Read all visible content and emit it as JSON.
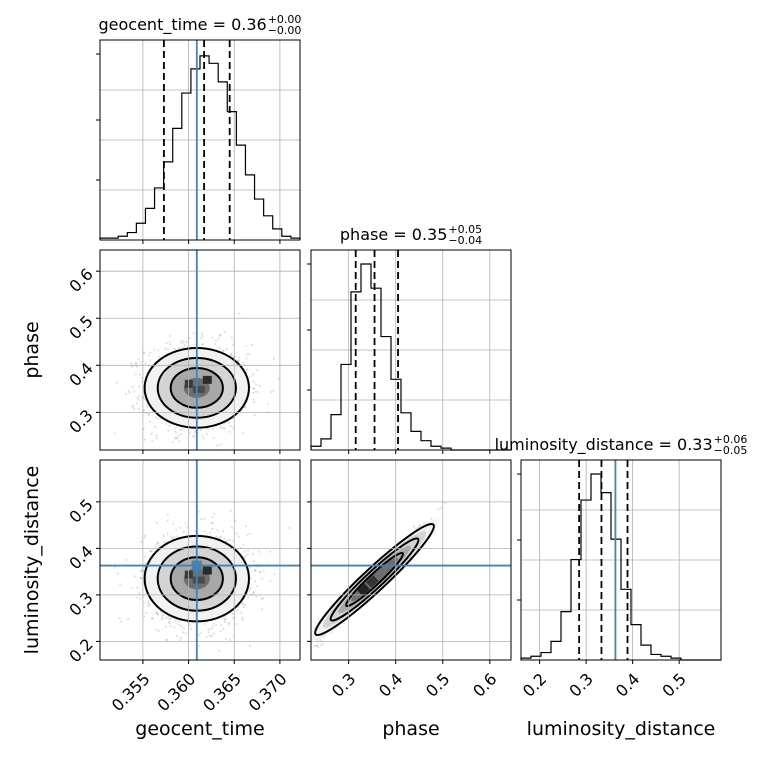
{
  "chart_data": {
    "type": "corner",
    "parameters": [
      "geocent_time",
      "phase",
      "luminosity_distance"
    ],
    "truth_color": "#4682b4",
    "titles": [
      {
        "param": "geocent_time",
        "text": "geocent_time = 0.36",
        "sup": "+0.00",
        "sub": "−0.00"
      },
      {
        "param": "phase",
        "text": "phase = 0.35",
        "sup": "+0.05",
        "sub": "−0.04"
      },
      {
        "param": "luminosity_distance",
        "text": "luminosity_distance = 0.33",
        "sup": "+0.06",
        "sub": "−0.05"
      }
    ],
    "axes": {
      "geocent_time": {
        "range": [
          0.3503,
          0.3722
        ],
        "ticks": [
          0.355,
          0.36,
          0.365,
          0.37
        ],
        "tick_labels": [
          "0.355",
          "0.360",
          "0.365",
          "0.370"
        ],
        "truth": 0.3609,
        "quantiles": [
          0.3573,
          0.3617,
          0.3645
        ]
      },
      "phase": {
        "range": [
          0.22,
          0.645
        ],
        "ticks": [
          0.3,
          0.4,
          0.5,
          0.6
        ],
        "tick_labels": [
          "0.3",
          "0.4",
          "0.5",
          "0.6"
        ],
        "quantiles": [
          0.315,
          0.355,
          0.405
        ]
      },
      "luminosity_distance": {
        "range": [
          0.16,
          0.59
        ],
        "ticks": [
          0.2,
          0.3,
          0.4,
          0.5
        ],
        "tick_labels": [
          "0.2",
          "0.3",
          "0.4",
          "0.5"
        ],
        "truth": 0.363,
        "quantiles": [
          0.285,
          0.333,
          0.389
        ]
      }
    },
    "histograms": {
      "geocent_time": [
        0.01,
        0.01,
        0.02,
        0.04,
        0.09,
        0.17,
        0.28,
        0.42,
        0.6,
        0.79,
        0.92,
        0.99,
        0.95,
        0.85,
        0.69,
        0.51,
        0.35,
        0.22,
        0.13,
        0.06,
        0.02,
        0.01
      ],
      "phase": [
        0.02,
        0.06,
        0.19,
        0.46,
        0.85,
        1.0,
        0.87,
        0.61,
        0.38,
        0.2,
        0.1,
        0.05,
        0.02,
        0.01,
        0.0,
        0.0,
        0.0,
        0.0,
        0.0,
        0.0
      ],
      "luminosity_distance": [
        0.01,
        0.02,
        0.04,
        0.1,
        0.26,
        0.54,
        0.86,
        1.0,
        0.9,
        0.65,
        0.38,
        0.19,
        0.08,
        0.03,
        0.02,
        0.01,
        0.0,
        0.0,
        0.0,
        0.0
      ]
    },
    "grid": true
  }
}
